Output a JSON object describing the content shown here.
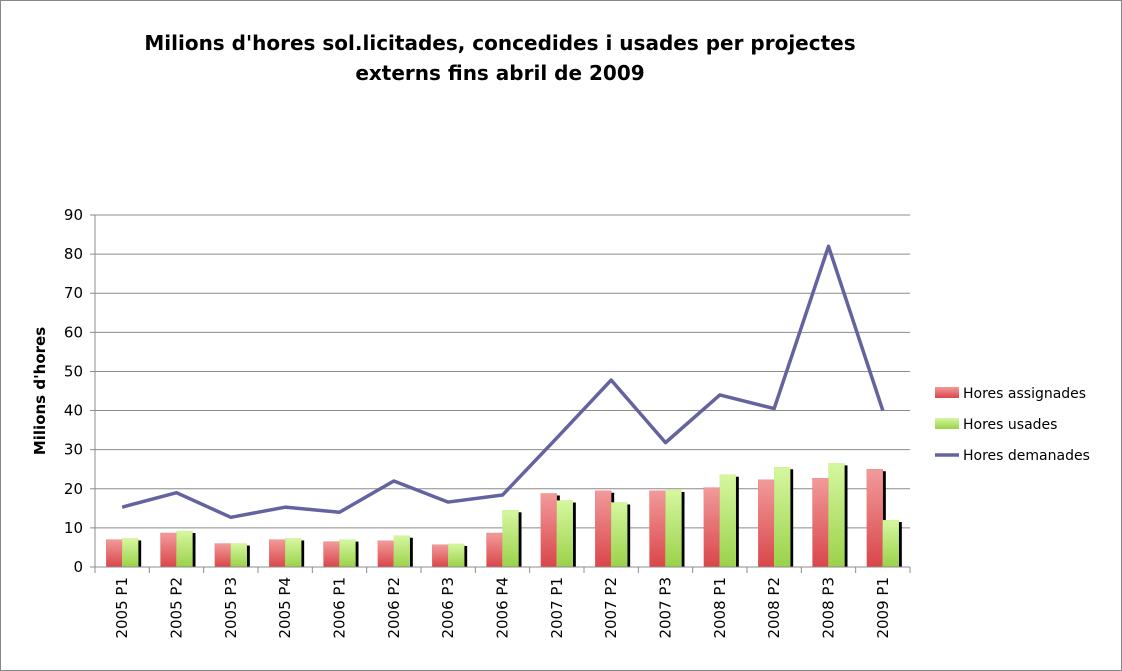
{
  "chart_data": {
    "type": "bar",
    "title": "Milions d'hores sol.licitades, concedides i usades per projectes externs fins abril de 2009",
    "y_label": "Milions d'hores",
    "categories": [
      "2005 P1",
      "2005 P2",
      "2005 P3",
      "2005 P4",
      "2006 P1",
      "2006 P2",
      "2006 P3",
      "2006 P4",
      "2007 P1",
      "2007 P2",
      "2007 P3",
      "2008 P1",
      "2008 P2",
      "2008 P3",
      "2009 P1"
    ],
    "series": [
      {
        "name": "Hores assignades",
        "type": "bar",
        "color": "#e8686a",
        "values": [
          7,
          8.7,
          6,
          7,
          6.5,
          6.7,
          5.7,
          8.7,
          18.8,
          19.5,
          19.5,
          20.3,
          22.3,
          22.7,
          25
        ]
      },
      {
        "name": "Hores usades",
        "type": "bar",
        "color": "#b6e86a",
        "values": [
          7.3,
          9.2,
          6,
          7.3,
          7,
          8,
          5.9,
          14.5,
          17,
          16.5,
          19.7,
          23.6,
          25.5,
          26.5,
          12
        ]
      },
      {
        "name": "Hores demanades",
        "type": "line",
        "color": "#64639f",
        "values": [
          15.3,
          19,
          12.7,
          15.3,
          14,
          22,
          16.6,
          18.4,
          33,
          47.8,
          31.8,
          44,
          40.5,
          82,
          40
        ]
      }
    ],
    "ylim": [
      0,
      90
    ],
    "yticks": [
      0,
      10,
      20,
      30,
      40,
      50,
      60,
      70,
      80,
      90
    ],
    "grid": true,
    "legend": "right"
  }
}
